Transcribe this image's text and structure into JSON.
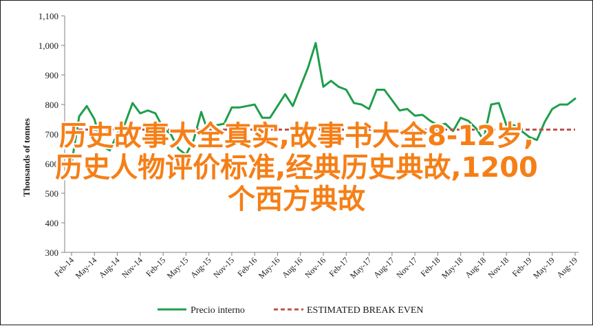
{
  "chart_data": {
    "type": "line",
    "ylabel": "Thousands of tonnes",
    "ylim": [
      300,
      1100
    ],
    "yticks": [
      300,
      400,
      500,
      600,
      700,
      800,
      900,
      1000,
      1100
    ],
    "ytick_labels": [
      "300",
      "400",
      "500",
      "600",
      "700",
      "800",
      "900",
      "1,000",
      "1,100"
    ],
    "xtick_labels": [
      "Feb-14",
      "May-14",
      "Aug-14",
      "Nov-14",
      "Feb-15",
      "May-15",
      "Aug-15",
      "Nov-15",
      "Feb-16",
      "May-16",
      "Aug-16",
      "Nov-16",
      "Feb-17",
      "May-17",
      "Aug-17",
      "Nov-17",
      "Feb-18",
      "May-18",
      "Aug-18",
      "Nov-18",
      "Feb-19",
      "May-19",
      "Aug-19"
    ],
    "legend_position": "bottom",
    "grid": false,
    "series": [
      {
        "name": "Precio interno",
        "color": "#1e9e4a",
        "style": "solid",
        "x": [
          0,
          1,
          2,
          3,
          4,
          5,
          6,
          7,
          8,
          9,
          10,
          11,
          12,
          13,
          14,
          15,
          16,
          17,
          18,
          19,
          20,
          21,
          22,
          23,
          24,
          25,
          26,
          27,
          28,
          29,
          30,
          31,
          32,
          33,
          34,
          35,
          36,
          37,
          38,
          39,
          40,
          41,
          42,
          43,
          44,
          45,
          46,
          47,
          48,
          49,
          50,
          51,
          52,
          53,
          54,
          55,
          56,
          57,
          58,
          59,
          60,
          61,
          62,
          63,
          64,
          65,
          66
        ],
        "values": [
          600,
          760,
          795,
          750,
          660,
          645,
          700,
          735,
          805,
          770,
          780,
          770,
          720,
          700,
          650,
          630,
          680,
          775,
          700,
          730,
          735,
          790,
          790,
          795,
          800,
          755,
          755,
          795,
          835,
          795,
          860,
          925,
          1008,
          860,
          880,
          860,
          850,
          805,
          800,
          785,
          850,
          850,
          815,
          780,
          785,
          762,
          765,
          745,
          730,
          735,
          710,
          755,
          745,
          720,
          680,
          800,
          805,
          730,
          730,
          710,
          690,
          680,
          740,
          785,
          800,
          800,
          820
        ]
      },
      {
        "name": "ESTIMATED BREAK EVEN",
        "color": "#c0504d",
        "style": "dashed",
        "x": [
          0,
          66
        ],
        "values": [
          715,
          715
        ]
      }
    ]
  },
  "overlay_text": {
    "line1": "历史故事大全真实,故事书大全8-12岁,",
    "line2": "历史人物评价标准,经典历史典故,1200",
    "line3": "个西方典故"
  },
  "colors": {
    "overlay": "#f57f17",
    "axis": "#7f7f7f"
  }
}
